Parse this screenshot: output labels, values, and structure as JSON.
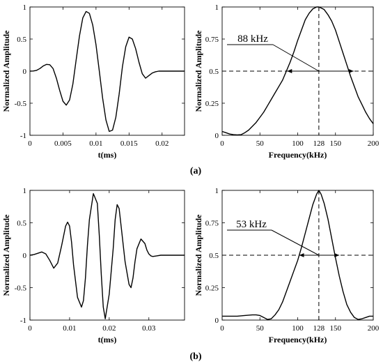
{
  "figure": {
    "label_a": "(a)",
    "label_b": "(b)"
  },
  "chart_data": [
    {
      "type": "line",
      "xlabel": "t(ms)",
      "ylabel": "Normalized Amplitude",
      "xlim": [
        0,
        0.0234
      ],
      "ylim": [
        -1,
        1
      ],
      "xticks": [
        0,
        0.005,
        0.01,
        0.015,
        0.02
      ],
      "xtick_labels": [
        "0",
        "0.005",
        "0.01",
        "0.015",
        "0.02"
      ],
      "yticks": [
        -1,
        -0.5,
        0,
        0.5,
        1
      ],
      "ytick_labels": [
        "-1",
        "-0.5",
        "0",
        "0.5",
        "1"
      ],
      "series": [
        {
          "x": [
            0,
            0.0005,
            0.001,
            0.0015,
            0.002,
            0.0025,
            0.003,
            0.0035,
            0.004,
            0.0045,
            0.005,
            0.0055,
            0.006,
            0.0065,
            0.007,
            0.0075,
            0.008,
            0.0085,
            0.009,
            0.0095,
            0.01,
            0.0105,
            0.011,
            0.0115,
            0.012,
            0.0125,
            0.013,
            0.0135,
            0.014,
            0.0145,
            0.015,
            0.0155,
            0.016,
            0.0165,
            0.017,
            0.0175,
            0.018,
            0.0185,
            0.019,
            0.0195,
            0.02,
            0.0205,
            0.021,
            0.0215,
            0.022,
            0.0225,
            0.023,
            0.0234
          ],
          "y": [
            0,
            0.002,
            0.012,
            0.04,
            0.08,
            0.105,
            0.1,
            0.04,
            -0.11,
            -0.3,
            -0.47,
            -0.53,
            -0.45,
            -0.2,
            0.18,
            0.55,
            0.83,
            0.93,
            0.9,
            0.72,
            0.41,
            0.0,
            -0.42,
            -0.76,
            -0.94,
            -0.92,
            -0.72,
            -0.36,
            0.07,
            0.38,
            0.53,
            0.5,
            0.35,
            0.14,
            -0.04,
            -0.11,
            -0.07,
            -0.03,
            -0.01,
            0,
            0,
            0,
            0,
            0,
            0,
            0,
            0,
            0
          ]
        }
      ]
    },
    {
      "type": "line",
      "xlabel": "Frequency(kHz)",
      "ylabel": "Normalized Amplitude",
      "xlim": [
        0,
        200
      ],
      "ylim": [
        0,
        1
      ],
      "xticks": [
        0,
        50,
        100,
        128,
        150,
        200
      ],
      "xtick_labels": [
        "0",
        "50",
        "100",
        "128",
        "150",
        "200"
      ],
      "yticks": [
        0,
        0.25,
        0.5,
        0.75,
        1
      ],
      "ytick_labels": [
        "0",
        "0.25",
        "0.5",
        "0.75",
        "1"
      ],
      "series": [
        {
          "x": [
            0,
            5,
            10,
            15,
            20,
            25,
            30,
            35,
            40,
            45,
            50,
            55,
            60,
            65,
            70,
            75,
            80,
            85,
            90,
            95,
            100,
            105,
            110,
            115,
            120,
            125,
            128,
            130,
            135,
            140,
            145,
            150,
            155,
            160,
            165,
            170,
            175,
            180,
            185,
            190,
            195,
            200
          ],
          "y": [
            0.03,
            0.02,
            0.01,
            0.005,
            0.003,
            0.005,
            0.02,
            0.04,
            0.07,
            0.1,
            0.14,
            0.18,
            0.23,
            0.28,
            0.33,
            0.38,
            0.43,
            0.5,
            0.57,
            0.65,
            0.74,
            0.82,
            0.9,
            0.95,
            0.985,
            1.0,
            1.0,
            0.995,
            0.98,
            0.94,
            0.89,
            0.82,
            0.73,
            0.64,
            0.55,
            0.46,
            0.38,
            0.3,
            0.24,
            0.18,
            0.13,
            0.09
          ]
        }
      ],
      "hline": 0.5,
      "vline": 128,
      "bandwidth": [
        86,
        174
      ],
      "annotation": "88 kHz"
    },
    {
      "type": "line",
      "xlabel": "t(ms)",
      "ylabel": "Normalized Amplitude",
      "xlim": [
        0,
        0.039
      ],
      "ylim": [
        -1,
        1
      ],
      "xticks": [
        0,
        0.01,
        0.02,
        0.03
      ],
      "xtick_labels": [
        "0",
        "0.01",
        "0.02",
        "0.03"
      ],
      "yticks": [
        -1,
        -0.5,
        0,
        0.5,
        1
      ],
      "ytick_labels": [
        "-1",
        "-0.5",
        "0",
        "0.5",
        "1"
      ],
      "series": [
        {
          "x": [
            0,
            0.001,
            0.002,
            0.003,
            0.004,
            0.005,
            0.006,
            0.007,
            0.008,
            0.009,
            0.0095,
            0.01,
            0.0105,
            0.011,
            0.012,
            0.013,
            0.0135,
            0.014,
            0.0145,
            0.015,
            0.016,
            0.017,
            0.0175,
            0.018,
            0.0185,
            0.019,
            0.02,
            0.021,
            0.0215,
            0.022,
            0.0225,
            0.023,
            0.024,
            0.025,
            0.0255,
            0.026,
            0.0265,
            0.027,
            0.028,
            0.029,
            0.0295,
            0.03,
            0.0305,
            0.031,
            0.032,
            0.033,
            0.034,
            0.035,
            0.036,
            0.037,
            0.038,
            0.039
          ],
          "y": [
            0,
            0.01,
            0.03,
            0.05,
            0.02,
            -0.08,
            -0.2,
            -0.12,
            0.15,
            0.45,
            0.51,
            0.45,
            0.2,
            -0.15,
            -0.65,
            -0.8,
            -0.7,
            -0.35,
            0.15,
            0.55,
            0.95,
            0.8,
            0.3,
            -0.3,
            -0.8,
            -0.98,
            -0.6,
            0.1,
            0.55,
            0.78,
            0.72,
            0.45,
            -0.1,
            -0.45,
            -0.5,
            -0.35,
            -0.1,
            0.1,
            0.25,
            0.18,
            0.08,
            0.02,
            -0.01,
            -0.02,
            -0.01,
            0,
            0,
            0,
            0,
            0,
            0,
            0
          ]
        }
      ]
    },
    {
      "type": "line",
      "xlabel": "Frequency(kHz)",
      "ylabel": "Normalized Amplitude",
      "xlim": [
        0,
        200
      ],
      "ylim": [
        0,
        1
      ],
      "xticks": [
        0,
        50,
        100,
        128,
        150,
        200
      ],
      "xtick_labels": [
        "0",
        "50",
        "100",
        "128",
        "150",
        "200"
      ],
      "yticks": [
        0,
        0.25,
        0.5,
        0.75,
        1
      ],
      "ytick_labels": [
        "0",
        "0.25",
        "0.5",
        "0.75",
        "1"
      ],
      "series": [
        {
          "x": [
            0,
            10,
            20,
            30,
            40,
            45,
            50,
            55,
            60,
            65,
            70,
            75,
            80,
            85,
            90,
            95,
            100,
            105,
            110,
            115,
            120,
            125,
            128,
            131,
            135,
            140,
            145,
            150,
            155,
            160,
            165,
            170,
            175,
            180,
            185,
            190,
            195,
            200
          ],
          "y": [
            0.03,
            0.03,
            0.03,
            0.035,
            0.04,
            0.04,
            0.035,
            0.02,
            0.005,
            0.01,
            0.04,
            0.08,
            0.14,
            0.22,
            0.3,
            0.38,
            0.46,
            0.56,
            0.67,
            0.78,
            0.89,
            0.97,
            1.0,
            0.97,
            0.9,
            0.78,
            0.63,
            0.48,
            0.34,
            0.22,
            0.12,
            0.06,
            0.02,
            0.005,
            0.01,
            0.02,
            0.03,
            0.03
          ]
        }
      ],
      "hline": 0.5,
      "vline": 128,
      "bandwidth": [
        102,
        155
      ],
      "annotation": "53 kHz"
    }
  ]
}
